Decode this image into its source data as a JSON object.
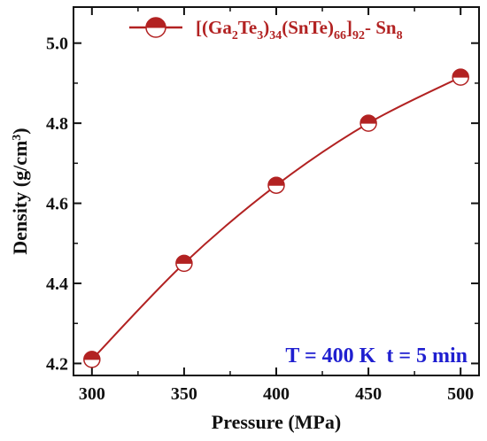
{
  "chart_data": {
    "type": "line",
    "xlabel": "Pressure (MPa)",
    "ylabel_parts": [
      "Density  (g/cm",
      "3",
      ")"
    ],
    "xlim": [
      290,
      510
    ],
    "ylim": [
      4.17,
      5.09
    ],
    "xticks": [
      300,
      350,
      400,
      450,
      500
    ],
    "yticks": [
      4.2,
      4.4,
      4.6,
      4.8,
      5.0
    ],
    "xtick_labels": [
      "300",
      "350",
      "400",
      "450",
      "500"
    ],
    "ytick_labels": [
      "4.2",
      "4.4",
      "4.6",
      "4.8",
      "5.0"
    ],
    "grid": false,
    "legend_position": "top-right",
    "series": [
      {
        "name_parts": [
          {
            "t": "[(Ga",
            "s": "n"
          },
          {
            "t": "2",
            "s": "sub"
          },
          {
            "t": "Te",
            "s": "n"
          },
          {
            "t": "3",
            "s": "sub"
          },
          {
            "t": ")",
            "s": "n"
          },
          {
            "t": "34",
            "s": "sub"
          },
          {
            "t": "(SnTe)",
            "s": "n"
          },
          {
            "t": "66",
            "s": "sub"
          },
          {
            "t": "]",
            "s": "n"
          },
          {
            "t": "92",
            "s": "sub"
          },
          {
            "t": "- Sn",
            "s": "n"
          },
          {
            "t": "8",
            "s": "sub"
          }
        ],
        "color": "#b22222",
        "marker": "half-filled-circle",
        "x": [
          300,
          350,
          400,
          450,
          500
        ],
        "y": [
          4.21,
          4.45,
          4.645,
          4.8,
          4.915
        ]
      }
    ],
    "annotation": "T = 400 K  t = 5 min",
    "annotation_color": "#1f1fd0"
  }
}
